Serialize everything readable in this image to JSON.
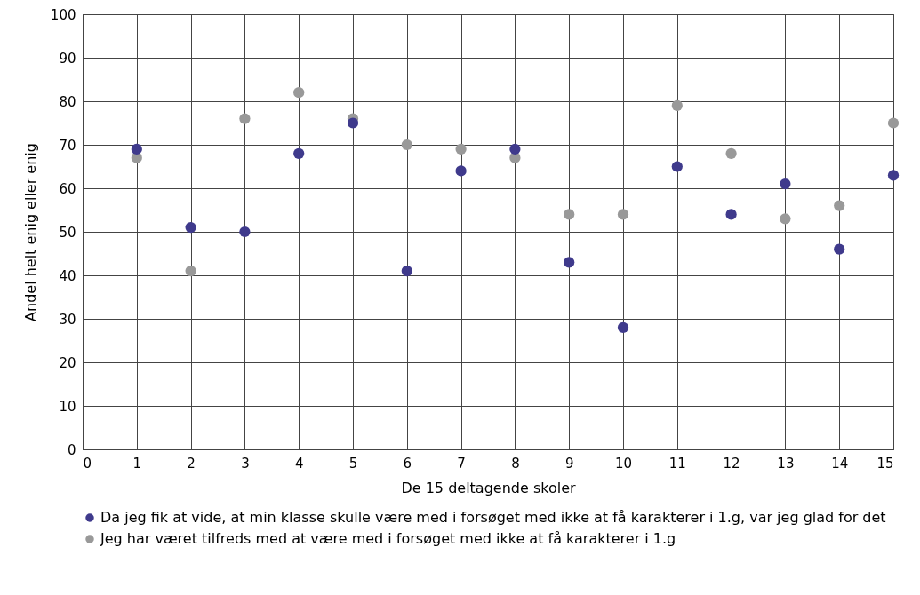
{
  "chart_data": {
    "type": "scatter",
    "xlabel": "De 15 deltagende skoler",
    "ylabel": "Andel helt enig eller enig",
    "x": [
      1,
      2,
      3,
      4,
      5,
      6,
      7,
      8,
      9,
      10,
      11,
      12,
      13,
      14,
      15
    ],
    "series": [
      {
        "name": "Da jeg fik at vide, at min klasse skulle være med i forsøget med ikke at få karakterer i 1.g, var jeg glad for det",
        "color": "#3f3a8c",
        "values": [
          69,
          51,
          50,
          68,
          75,
          41,
          64,
          69,
          43,
          28,
          65,
          54,
          61,
          46,
          63
        ]
      },
      {
        "name": "Jeg har været tilfreds med at være med i forsøget med ikke at få karakterer i 1.g",
        "color": "#999999",
        "values": [
          67,
          41,
          76,
          82,
          76,
          70,
          69,
          67,
          54,
          54,
          79,
          68,
          53,
          56,
          75
        ]
      }
    ],
    "xlim": [
      0,
      15
    ],
    "xticks": [
      0,
      1,
      2,
      3,
      4,
      5,
      6,
      7,
      8,
      9,
      10,
      11,
      12,
      13,
      14,
      15
    ],
    "ylim": [
      0,
      100
    ],
    "yticks": [
      0,
      10,
      20,
      30,
      40,
      50,
      60,
      70,
      80,
      90,
      100
    ],
    "grid": true,
    "legend": "bottom",
    "marker": "circle"
  }
}
